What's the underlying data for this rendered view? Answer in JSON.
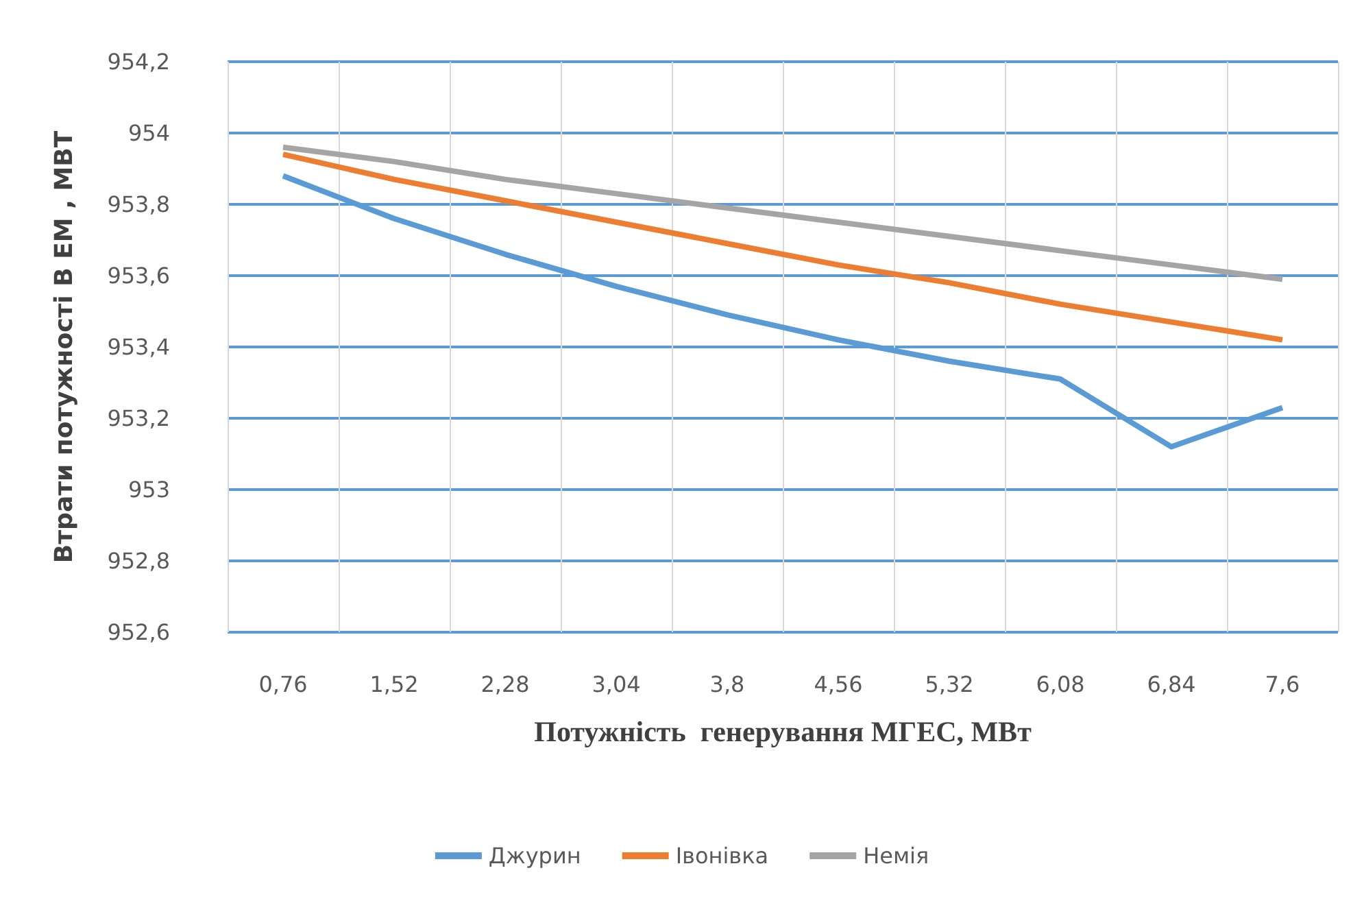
{
  "chart_data": {
    "type": "line",
    "xlabel": "Потужність  генерування МГЕС, МВт",
    "ylabel": "Втрати потужності В ЕМ , МВТ",
    "categories": [
      "0,76",
      "1,52",
      "2,28",
      "3,04",
      "3,8",
      "4,56",
      "5,32",
      "6,08",
      "6,84",
      "7,6"
    ],
    "series": [
      {
        "name": "Джурин",
        "color": "#5b9bd5",
        "values": [
          953.88,
          953.76,
          953.66,
          953.57,
          953.49,
          953.42,
          953.36,
          953.31,
          953.12,
          953.23
        ]
      },
      {
        "name": "Івонівка",
        "color": "#ed7d31",
        "values": [
          953.94,
          953.87,
          953.81,
          953.75,
          953.69,
          953.63,
          953.58,
          953.52,
          953.47,
          953.42
        ]
      },
      {
        "name": "Немія",
        "color": "#a5a5a5",
        "values": [
          953.96,
          953.92,
          953.87,
          953.83,
          953.79,
          953.75,
          953.71,
          953.67,
          953.63,
          953.59
        ]
      }
    ],
    "ylim": [
      952.6,
      954.2
    ],
    "yticks": [
      {
        "value": 952.6,
        "label": "952,6"
      },
      {
        "value": 952.8,
        "label": "952,8"
      },
      {
        "value": 953,
        "label": "953"
      },
      {
        "value": 953.2,
        "label": "953,2"
      },
      {
        "value": 953.4,
        "label": "953,4"
      },
      {
        "value": 953.6,
        "label": "953,6"
      },
      {
        "value": 953.8,
        "label": "953,8"
      },
      {
        "value": 954,
        "label": "954"
      },
      {
        "value": 954.2,
        "label": "954,2"
      }
    ],
    "grid": true,
    "legend": "bottom",
    "marker": "none",
    "line_style": "solid"
  }
}
